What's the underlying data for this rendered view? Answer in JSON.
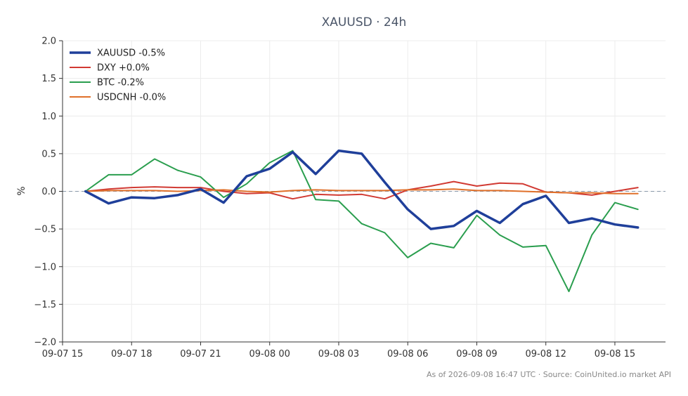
{
  "chart_data": {
    "type": "line",
    "title": "XAUUSD · 24h",
    "xlabel": "",
    "ylabel": "%",
    "x_tick_labels": [
      "09-07 15",
      "09-07 18",
      "09-07 21",
      "09-08 00",
      "09-08 03",
      "09-08 06",
      "09-08 09",
      "09-08 12",
      "09-08 15"
    ],
    "x_tick_hours": [
      15,
      18,
      21,
      24,
      27,
      30,
      33,
      36,
      39
    ],
    "x_hours": [
      16,
      17,
      18,
      19,
      20,
      21,
      22,
      23,
      24,
      25,
      26,
      27,
      28,
      29,
      30,
      31,
      32,
      33,
      34,
      35,
      36,
      37,
      38,
      39,
      40
    ],
    "xlim_hours": [
      15,
      41.2
    ],
    "ylim": [
      -2.0,
      2.0
    ],
    "y_ticks": [
      -2.0,
      -1.5,
      -1.0,
      -0.5,
      0.0,
      0.5,
      1.0,
      1.5,
      2.0
    ],
    "y_tick_labels": [
      "−2.0",
      "−1.5",
      "−1.0",
      "−0.5",
      "0.0",
      "0.5",
      "1.0",
      "1.5",
      "2.0"
    ],
    "zero_line": true,
    "grid": true,
    "legend_position": "top-left",
    "series": [
      {
        "name": "XAUUSD -0.5%",
        "color": "#1f3f9a",
        "width": 3.5,
        "values": [
          0.0,
          -0.16,
          -0.08,
          -0.09,
          -0.05,
          0.03,
          -0.15,
          0.2,
          0.3,
          0.52,
          0.23,
          0.54,
          0.5,
          0.12,
          -0.24,
          -0.5,
          -0.46,
          -0.26,
          -0.42,
          -0.17,
          -0.06,
          -0.42,
          -0.36,
          -0.44,
          -0.48
        ]
      },
      {
        "name": "DXY +0.0%",
        "color": "#d13a33",
        "width": 2,
        "values": [
          0.0,
          0.03,
          0.05,
          0.06,
          0.05,
          0.05,
          0.0,
          -0.03,
          -0.02,
          -0.1,
          -0.04,
          -0.05,
          -0.04,
          -0.1,
          0.02,
          0.07,
          0.13,
          0.07,
          0.11,
          0.1,
          -0.01,
          -0.02,
          -0.05,
          0.0,
          0.05
        ]
      },
      {
        "name": "BTC -0.2%",
        "color": "#2a9e4e",
        "width": 2,
        "values": [
          0.0,
          0.22,
          0.22,
          0.43,
          0.28,
          0.19,
          -0.08,
          0.1,
          0.38,
          0.54,
          -0.11,
          -0.13,
          -0.43,
          -0.55,
          -0.88,
          -0.69,
          -0.75,
          -0.32,
          -0.58,
          -0.74,
          -0.72,
          -1.33,
          -0.58,
          -0.15,
          -0.24
        ]
      },
      {
        "name": "USDCNH -0.0%",
        "color": "#e0702a",
        "width": 2,
        "values": [
          0.0,
          0.01,
          0.01,
          0.01,
          0.0,
          0.01,
          0.02,
          0.0,
          -0.01,
          0.01,
          0.02,
          0.01,
          0.01,
          0.01,
          0.02,
          0.02,
          0.03,
          0.01,
          0.01,
          0.0,
          -0.01,
          -0.02,
          -0.02,
          -0.03,
          -0.03
        ]
      }
    ]
  },
  "footer": "As of 2026-09-08 16:47 UTC · Source: CoinUnited.io market API"
}
